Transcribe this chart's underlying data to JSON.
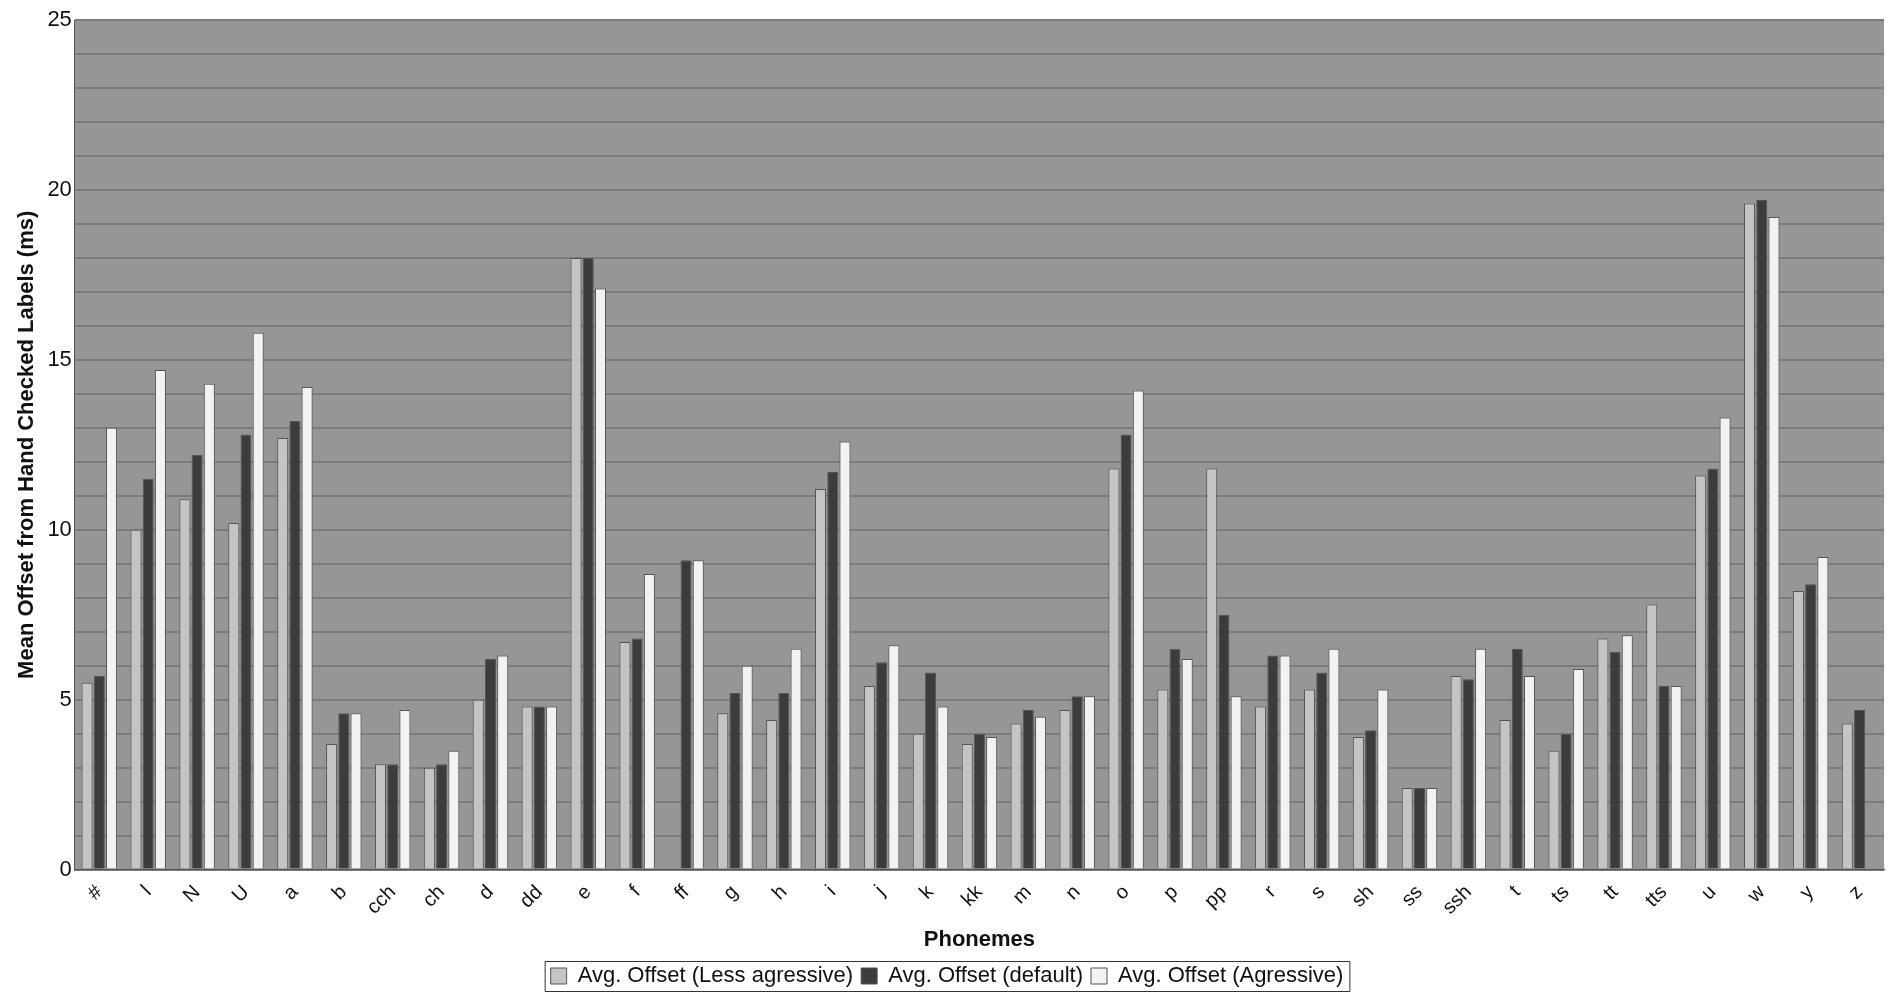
{
  "chart_data": {
    "type": "bar",
    "xlabel": "Phonemes",
    "ylabel": "Mean Offset from Hand Checked Labels (ms)",
    "categories": [
      "#",
      "l",
      "N",
      "U",
      "a",
      "b",
      "cch",
      "ch",
      "d",
      "dd",
      "e",
      "f",
      "ff",
      "g",
      "h",
      "i",
      "j",
      "k",
      "kk",
      "m",
      "n",
      "o",
      "p",
      "pp",
      "r",
      "s",
      "sh",
      "ss",
      "ssh",
      "t",
      "ts",
      "tt",
      "tts",
      "u",
      "w",
      "y",
      "z"
    ],
    "series": [
      {
        "name": "Avg. Offset (Less agressive)",
        "color": "#c4c4c4",
        "values": [
          5.5,
          10.0,
          10.9,
          10.2,
          12.7,
          3.7,
          3.1,
          3.0,
          5.0,
          4.8,
          18.0,
          6.7,
          null,
          4.6,
          4.4,
          11.2,
          5.4,
          4.0,
          3.7,
          4.3,
          4.7,
          11.8,
          5.3,
          11.8,
          4.8,
          5.3,
          3.9,
          2.4,
          5.7,
          4.4,
          3.5,
          6.8,
          7.8,
          11.6,
          19.6,
          8.2,
          4.3
        ]
      },
      {
        "name": "Avg. Offset (default)",
        "color": "#3c3c3c",
        "values": [
          5.7,
          11.5,
          12.2,
          12.8,
          13.2,
          4.6,
          3.1,
          3.1,
          6.2,
          4.8,
          18.0,
          6.8,
          9.1,
          5.2,
          5.2,
          11.7,
          6.1,
          5.8,
          4.0,
          4.7,
          5.1,
          12.8,
          6.5,
          7.5,
          6.3,
          5.8,
          4.1,
          2.4,
          5.6,
          6.5,
          4.0,
          6.4,
          5.4,
          11.8,
          19.7,
          8.4,
          4.7
        ]
      },
      {
        "name": "Avg. Offset (Agressive)",
        "color": "#f2f2f2",
        "values": [
          13.0,
          14.7,
          14.3,
          15.8,
          14.2,
          4.6,
          4.7,
          3.5,
          6.3,
          4.8,
          17.1,
          8.7,
          9.1,
          6.0,
          6.5,
          12.6,
          6.6,
          4.8,
          3.9,
          4.5,
          5.1,
          14.1,
          6.2,
          5.1,
          6.3,
          6.5,
          5.3,
          2.4,
          6.5,
          5.7,
          5.9,
          6.9,
          5.4,
          13.3,
          19.2,
          9.2,
          null
        ]
      }
    ],
    "ylim": [
      0,
      25
    ],
    "yticks": [
      0,
      {
        "value": 1,
        "label": null
      },
      {
        "value": 2,
        "label": null
      },
      {
        "value": 3,
        "label": null
      },
      {
        "value": 4,
        "label": null
      },
      5,
      {
        "value": 6,
        "label": null
      },
      {
        "value": 7,
        "label": null
      },
      {
        "value": 8,
        "label": null
      },
      {
        "value": 9,
        "label": null
      },
      10,
      {
        "value": 11,
        "label": null
      },
      {
        "value": 12,
        "label": null
      },
      {
        "value": 13,
        "label": null
      },
      {
        "value": 14,
        "label": null
      },
      15,
      {
        "value": 16,
        "label": null
      },
      {
        "value": 17,
        "label": null
      },
      {
        "value": 18,
        "label": null
      },
      {
        "value": 19,
        "label": null
      },
      20,
      {
        "value": 21,
        "label": null
      },
      {
        "value": 22,
        "label": null
      },
      {
        "value": 23,
        "label": null
      },
      {
        "value": 24,
        "label": null
      },
      25
    ],
    "grid": "y",
    "legend": "bottom"
  }
}
